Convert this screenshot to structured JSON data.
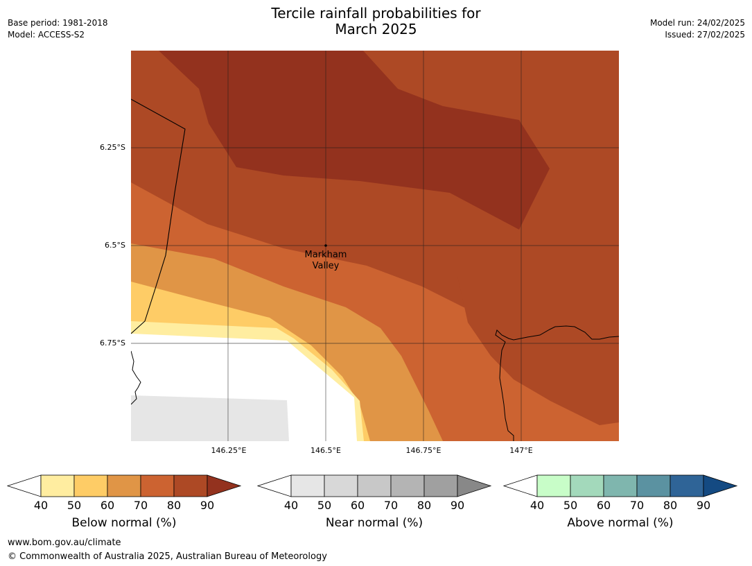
{
  "header": {
    "title_line1": "Tercile rainfall probabilities for",
    "title_line2": "March 2025",
    "base_period": "Base period: 1981-2018",
    "model": "Model: ACCESS-S2",
    "model_run": "Model run: 24/02/2025",
    "issued": "Issued: 27/02/2025"
  },
  "map": {
    "lat_labels": [
      "6.25°S",
      "6.5°S",
      "6.75°S"
    ],
    "lon_labels": [
      "146.25°E",
      "146.5°E",
      "146.75°E",
      "147°E"
    ],
    "place": {
      "name_line1": "Markham",
      "name_line2": "Valley"
    }
  },
  "legends": [
    {
      "label": "Below normal (%)",
      "ticks": [
        "40",
        "50",
        "60",
        "70",
        "80",
        "90"
      ],
      "colors": [
        "#ffeda0",
        "#fecc66",
        "#e09546",
        "#cc6331",
        "#ad4925",
        "#93321e"
      ]
    },
    {
      "label": "Near normal (%)",
      "ticks": [
        "40",
        "50",
        "60",
        "70",
        "80",
        "90"
      ],
      "colors": [
        "#e6e6e6",
        "#d8d8d8",
        "#c8c8c8",
        "#b4b4b4",
        "#a0a0a0",
        "#888888"
      ]
    },
    {
      "label": "Above normal (%)",
      "ticks": [
        "40",
        "50",
        "60",
        "70",
        "80",
        "90"
      ],
      "colors": [
        "#c8fdc8",
        "#a3d9bb",
        "#7fb6ae",
        "#5b92a1",
        "#2f6497",
        "#144a82"
      ]
    }
  ],
  "footer": {
    "url": "www.bom.gov.au/climate",
    "copyright": "© Commonwealth of Australia 2025, Australian Bureau of Meteorology"
  }
}
